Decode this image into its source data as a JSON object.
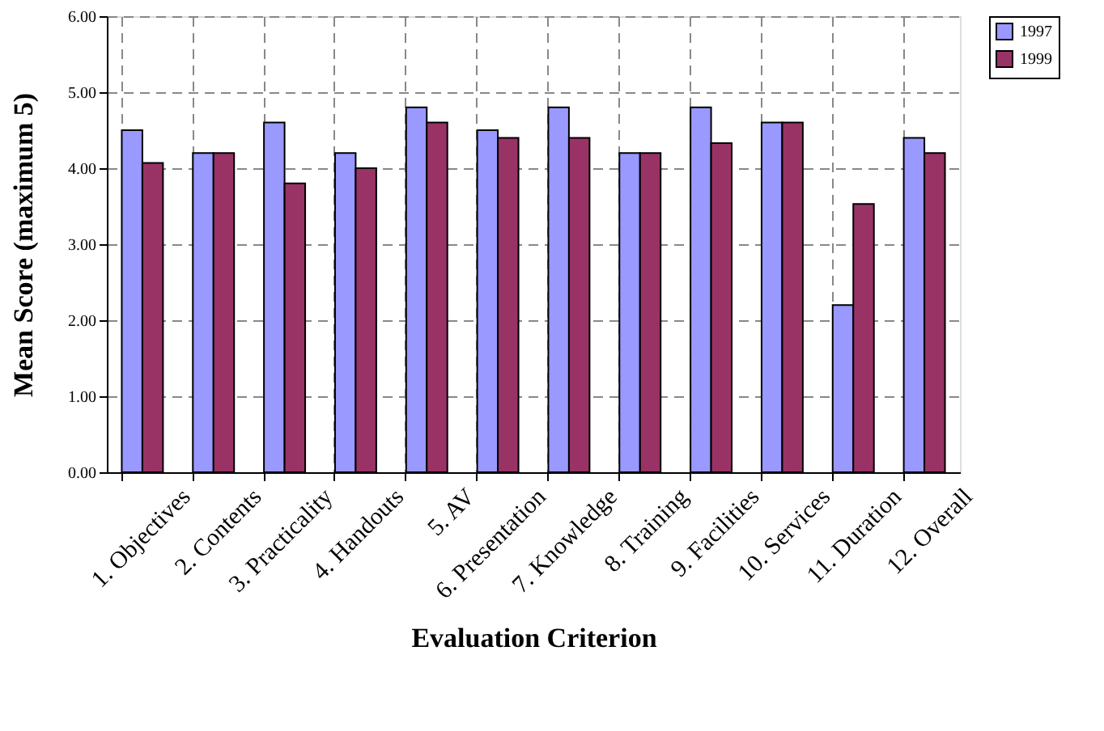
{
  "chart_data": {
    "type": "bar",
    "xlabel": "Evaluation Criterion",
    "ylabel": "Mean Score (maximum 5)",
    "categories": [
      "1. Objectives",
      "2. Contents",
      "3. Practicality",
      "4. Handouts",
      "5. AV",
      "6. Presentation",
      "7. Knowledge",
      "8. Training",
      "9. Facilities",
      "10. Services",
      "11. Duration",
      "12. Overall"
    ],
    "series": [
      {
        "name": "1997",
        "color": "#9999ff",
        "values": [
          4.5,
          4.2,
          4.6,
          4.2,
          4.8,
          4.5,
          4.8,
          4.2,
          4.8,
          4.6,
          2.2,
          4.4
        ]
      },
      {
        "name": "1999",
        "color": "#993366",
        "values": [
          4.07,
          4.2,
          3.8,
          4.0,
          4.6,
          4.4,
          4.4,
          4.2,
          4.33,
          4.6,
          3.53,
          4.2
        ]
      }
    ],
    "ylim": [
      0,
      6
    ],
    "yticks": [
      {
        "value": 0,
        "label": "0.00"
      },
      {
        "value": 1,
        "label": "1.00"
      },
      {
        "value": 2,
        "label": "2.00"
      },
      {
        "value": 3,
        "label": "3.00"
      },
      {
        "value": 4,
        "label": "4.00"
      },
      {
        "value": 5,
        "label": "5.00"
      },
      {
        "value": 6,
        "label": "6.00"
      }
    ],
    "grid": true,
    "legend": "right"
  }
}
